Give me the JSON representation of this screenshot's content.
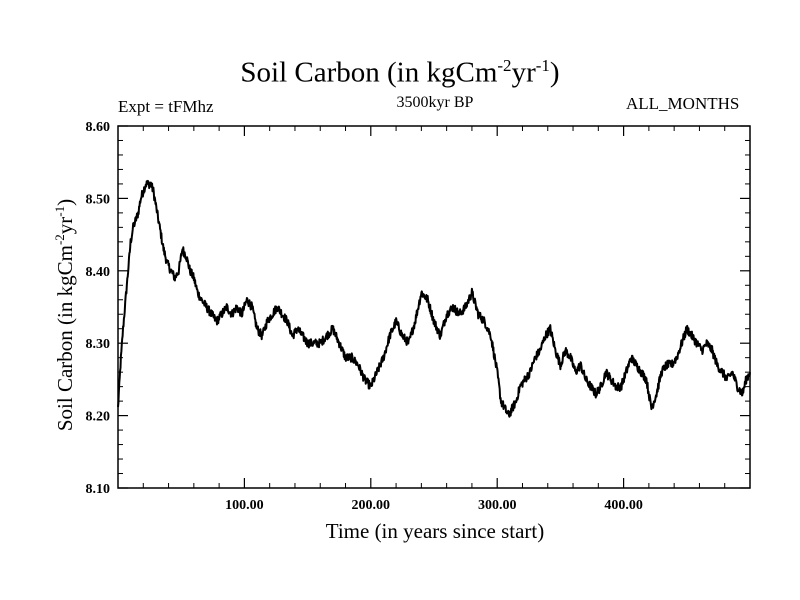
{
  "chart_data": {
    "type": "line",
    "title_main": "Soil Carbon (in kgCm",
    "title_sup1": "-2",
    "title_mid": "yr",
    "title_sup2": "-1",
    "title_end": ")",
    "subtitle_left": "Expt = tFMhz",
    "subtitle_center": "3500kyr BP",
    "subtitle_right": "ALL_MONTHS",
    "xlabel": "Time (in years since start)",
    "ylabel_main": "Soil Carbon (in kgCm",
    "ylabel_sup1": "-2",
    "ylabel_mid": "yr",
    "ylabel_sup2": "-1",
    "ylabel_end": ")",
    "xlim": [
      0,
      500
    ],
    "ylim": [
      8.1,
      8.6
    ],
    "x_ticks": [
      100,
      200,
      300,
      400
    ],
    "x_tick_labels": [
      "100.00",
      "200.00",
      "300.00",
      "400.00"
    ],
    "y_ticks": [
      8.1,
      8.2,
      8.3,
      8.4,
      8.5,
      8.6
    ],
    "y_tick_labels": [
      "8.10",
      "8.20",
      "8.30",
      "8.40",
      "8.50",
      "8.60"
    ],
    "grid": false,
    "series": [
      {
        "name": "Soil Carbon",
        "color": "#000000",
        "x": [
          0,
          2,
          4,
          6,
          8,
          10,
          12,
          14,
          16,
          18,
          20,
          22,
          24,
          26,
          28,
          30,
          33,
          36,
          39,
          42,
          45,
          48,
          51,
          54,
          57,
          60,
          63,
          66,
          70,
          74,
          78,
          82,
          86,
          90,
          94,
          98,
          102,
          106,
          110,
          114,
          118,
          122,
          126,
          130,
          134,
          138,
          142,
          146,
          150,
          155,
          160,
          165,
          170,
          175,
          180,
          185,
          190,
          195,
          200,
          205,
          210,
          215,
          220,
          225,
          230,
          235,
          240,
          245,
          250,
          255,
          260,
          265,
          270,
          275,
          280,
          285,
          290,
          295,
          300,
          303,
          306,
          309,
          312,
          315,
          318,
          322,
          326,
          330,
          334,
          338,
          342,
          346,
          350,
          354,
          358,
          362,
          366,
          370,
          374,
          378,
          382,
          386,
          390,
          394,
          398,
          402,
          406,
          410,
          414,
          418,
          422,
          426,
          430,
          434,
          438,
          442,
          446,
          450,
          454,
          458,
          462,
          466,
          470,
          474,
          478,
          482,
          486,
          490,
          494,
          497,
          500
        ],
        "y": [
          8.21,
          8.27,
          8.32,
          8.36,
          8.4,
          8.44,
          8.46,
          8.47,
          8.48,
          8.5,
          8.51,
          8.52,
          8.52,
          8.52,
          8.51,
          8.49,
          8.46,
          8.43,
          8.41,
          8.4,
          8.39,
          8.4,
          8.43,
          8.42,
          8.4,
          8.39,
          8.37,
          8.36,
          8.35,
          8.34,
          8.33,
          8.34,
          8.35,
          8.34,
          8.35,
          8.34,
          8.36,
          8.35,
          8.32,
          8.31,
          8.33,
          8.34,
          8.35,
          8.34,
          8.33,
          8.31,
          8.32,
          8.31,
          8.3,
          8.3,
          8.3,
          8.31,
          8.32,
          8.3,
          8.28,
          8.28,
          8.27,
          8.25,
          8.24,
          8.26,
          8.28,
          8.31,
          8.33,
          8.31,
          8.3,
          8.33,
          8.37,
          8.36,
          8.33,
          8.31,
          8.34,
          8.35,
          8.34,
          8.35,
          8.37,
          8.34,
          8.33,
          8.31,
          8.26,
          8.22,
          8.21,
          8.2,
          8.21,
          8.22,
          8.24,
          8.25,
          8.26,
          8.28,
          8.29,
          8.31,
          8.32,
          8.29,
          8.27,
          8.29,
          8.28,
          8.26,
          8.27,
          8.25,
          8.24,
          8.23,
          8.24,
          8.26,
          8.25,
          8.24,
          8.24,
          8.26,
          8.28,
          8.27,
          8.26,
          8.25,
          8.21,
          8.23,
          8.26,
          8.27,
          8.27,
          8.28,
          8.3,
          8.32,
          8.31,
          8.3,
          8.29,
          8.3,
          8.29,
          8.27,
          8.26,
          8.25,
          8.26,
          8.24,
          8.23,
          8.25,
          8.26
        ]
      }
    ]
  }
}
